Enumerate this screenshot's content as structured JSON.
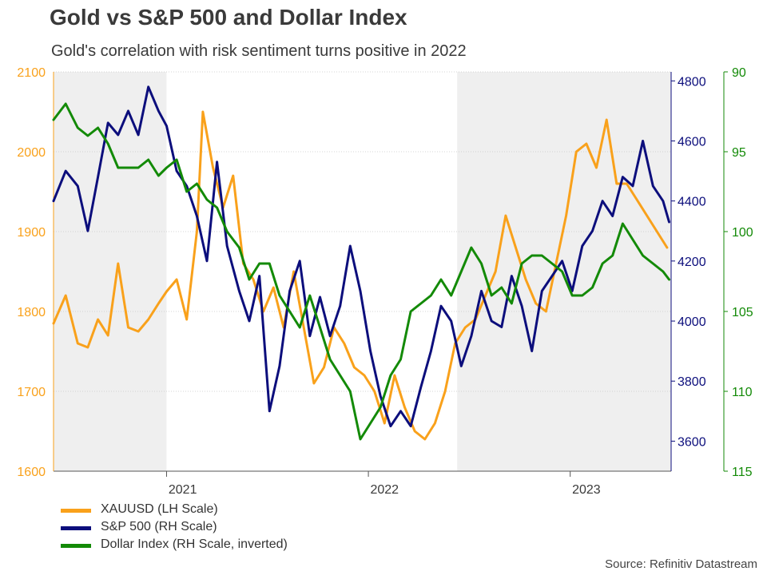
{
  "title": "Gold vs S&P 500 and Dollar Index",
  "subtitle": "Gold's correlation with risk sentiment turns positive in 2022",
  "source": "Source: Refinitiv Datastream",
  "colors": {
    "gold": "#F9A11B",
    "spx": "#0C0E7C",
    "dxy": "#138A07",
    "shade": "#EFEFEF",
    "text": "#3a3a3a"
  },
  "chart_data": {
    "type": "line",
    "title": "Gold vs S&P 500 and Dollar Index",
    "subtitle": "Gold's correlation with risk sentiment turns positive in 2022",
    "x_range": [
      2020.86,
      2023.92
    ],
    "x_tick_labels": [
      {
        "label": "2021",
        "x": 2021.5
      },
      {
        "label": "2022",
        "x": 2022.5
      },
      {
        "label": "2023",
        "x": 2023.5
      }
    ],
    "x_year_boundaries": [
      2021.42,
      2022.42,
      2023.42
    ],
    "shaded_periods": [
      [
        2020.86,
        2021.42
      ],
      [
        2022.86,
        2023.92
      ]
    ],
    "left_axis": {
      "label": "XAUUSD (LH Scale)",
      "range": [
        1600,
        2100
      ],
      "ticks": [
        1600,
        1700,
        1800,
        1900,
        2000,
        2100
      ]
    },
    "right_axis_1": {
      "label": "S&P 500 (RH Scale)",
      "range": [
        3500,
        4830
      ],
      "ticks": [
        3600,
        3800,
        4000,
        4200,
        4400,
        4600,
        4800
      ]
    },
    "right_axis_2": {
      "label": "Dollar Index (RH Scale, inverted)",
      "range": [
        90,
        115
      ],
      "inverted": true,
      "ticks": [
        90,
        95,
        100,
        105,
        110,
        115
      ]
    },
    "series": [
      {
        "name": "XAUUSD (LH Scale)",
        "axis": "left",
        "x": [
          2020.86,
          2020.92,
          2020.98,
          2021.03,
          2021.08,
          2021.13,
          2021.18,
          2021.23,
          2021.28,
          2021.33,
          2021.38,
          2021.42,
          2021.47,
          2021.52,
          2021.57,
          2021.6,
          2021.65,
          2021.7,
          2021.75,
          2021.8,
          2021.85,
          2021.9,
          2021.95,
          2022.0,
          2022.05,
          2022.1,
          2022.15,
          2022.2,
          2022.25,
          2022.3,
          2022.35,
          2022.4,
          2022.45,
          2022.5,
          2022.55,
          2022.6,
          2022.65,
          2022.7,
          2022.75,
          2022.8,
          2022.85,
          2022.9,
          2022.95,
          2023.0,
          2023.05,
          2023.1,
          2023.15,
          2023.2,
          2023.25,
          2023.3,
          2023.35,
          2023.4,
          2023.45,
          2023.5,
          2023.55,
          2023.6,
          2023.65,
          2023.7,
          2023.75,
          2023.8,
          2023.85,
          2023.9
        ],
        "values": [
          1785,
          1820,
          1760,
          1755,
          1790,
          1770,
          1860,
          1780,
          1775,
          1790,
          1810,
          1825,
          1840,
          1790,
          1900,
          2050,
          1980,
          1930,
          1970,
          1860,
          1840,
          1800,
          1830,
          1780,
          1850,
          1780,
          1710,
          1730,
          1780,
          1760,
          1730,
          1720,
          1700,
          1660,
          1720,
          1680,
          1650,
          1640,
          1660,
          1700,
          1760,
          1780,
          1790,
          1820,
          1850,
          1920,
          1880,
          1840,
          1810,
          1800,
          1860,
          1920,
          2000,
          2010,
          1980,
          2040,
          1960,
          1960,
          1940,
          1920,
          1900,
          1880
        ]
      },
      {
        "name": "S&P 500 (RH Scale)",
        "axis": "right_1",
        "x": [
          2020.86,
          2020.92,
          2020.98,
          2021.03,
          2021.08,
          2021.13,
          2021.18,
          2021.23,
          2021.28,
          2021.33,
          2021.38,
          2021.42,
          2021.47,
          2021.52,
          2021.57,
          2021.62,
          2021.67,
          2021.72,
          2021.78,
          2021.83,
          2021.88,
          2021.93,
          2021.98,
          2022.03,
          2022.08,
          2022.13,
          2022.18,
          2022.23,
          2022.28,
          2022.33,
          2022.38,
          2022.43,
          2022.48,
          2022.53,
          2022.58,
          2022.63,
          2022.68,
          2022.73,
          2022.78,
          2022.83,
          2022.88,
          2022.93,
          2022.98,
          2023.03,
          2023.08,
          2023.13,
          2023.18,
          2023.23,
          2023.28,
          2023.33,
          2023.38,
          2023.43,
          2023.48,
          2023.53,
          2023.58,
          2023.63,
          2023.68,
          2023.73,
          2023.78,
          2023.83,
          2023.88,
          2023.91
        ],
        "values": [
          4400,
          4500,
          4450,
          4300,
          4480,
          4660,
          4620,
          4700,
          4620,
          4780,
          4700,
          4650,
          4500,
          4450,
          4350,
          4200,
          4530,
          4250,
          4100,
          4000,
          4150,
          3700,
          3850,
          4100,
          4200,
          3950,
          4080,
          3950,
          4050,
          4250,
          4100,
          3900,
          3750,
          3650,
          3700,
          3650,
          3780,
          3900,
          4050,
          4000,
          3850,
          3950,
          4100,
          4000,
          3980,
          4150,
          4050,
          3900,
          4100,
          4150,
          4200,
          4100,
          4250,
          4300,
          4400,
          4350,
          4480,
          4450,
          4600,
          4450,
          4400,
          4330
        ]
      },
      {
        "name": "Dollar Index (RH Scale, inverted)",
        "axis": "right_2",
        "x": [
          2020.86,
          2020.92,
          2020.98,
          2021.03,
          2021.08,
          2021.13,
          2021.18,
          2021.23,
          2021.28,
          2021.33,
          2021.38,
          2021.42,
          2021.47,
          2021.52,
          2021.57,
          2021.62,
          2021.67,
          2021.72,
          2021.78,
          2021.83,
          2021.88,
          2021.93,
          2021.98,
          2022.03,
          2022.08,
          2022.13,
          2022.18,
          2022.23,
          2022.28,
          2022.33,
          2022.38,
          2022.43,
          2022.48,
          2022.53,
          2022.58,
          2022.63,
          2022.68,
          2022.73,
          2022.78,
          2022.83,
          2022.88,
          2022.93,
          2022.98,
          2023.03,
          2023.08,
          2023.13,
          2023.18,
          2023.23,
          2023.28,
          2023.33,
          2023.38,
          2023.43,
          2023.48,
          2023.53,
          2023.58,
          2023.63,
          2023.68,
          2023.73,
          2023.78,
          2023.83,
          2023.88,
          2023.91
        ],
        "values": [
          93,
          92,
          93.5,
          94,
          93.5,
          94.5,
          96,
          96,
          96,
          95.5,
          96.5,
          96,
          95.5,
          97.5,
          97,
          98,
          98.5,
          100,
          101,
          103,
          102,
          102,
          104,
          105,
          106,
          104,
          106,
          108,
          109,
          110,
          113,
          112,
          111,
          109,
          108,
          105,
          104.5,
          104,
          103,
          104,
          102.5,
          101,
          102,
          104,
          103.5,
          104.5,
          102,
          101.5,
          101.5,
          102,
          102.5,
          104,
          104,
          103.5,
          102,
          101.5,
          99.5,
          100.5,
          101.5,
          102,
          102.5,
          103
        ]
      }
    ]
  }
}
